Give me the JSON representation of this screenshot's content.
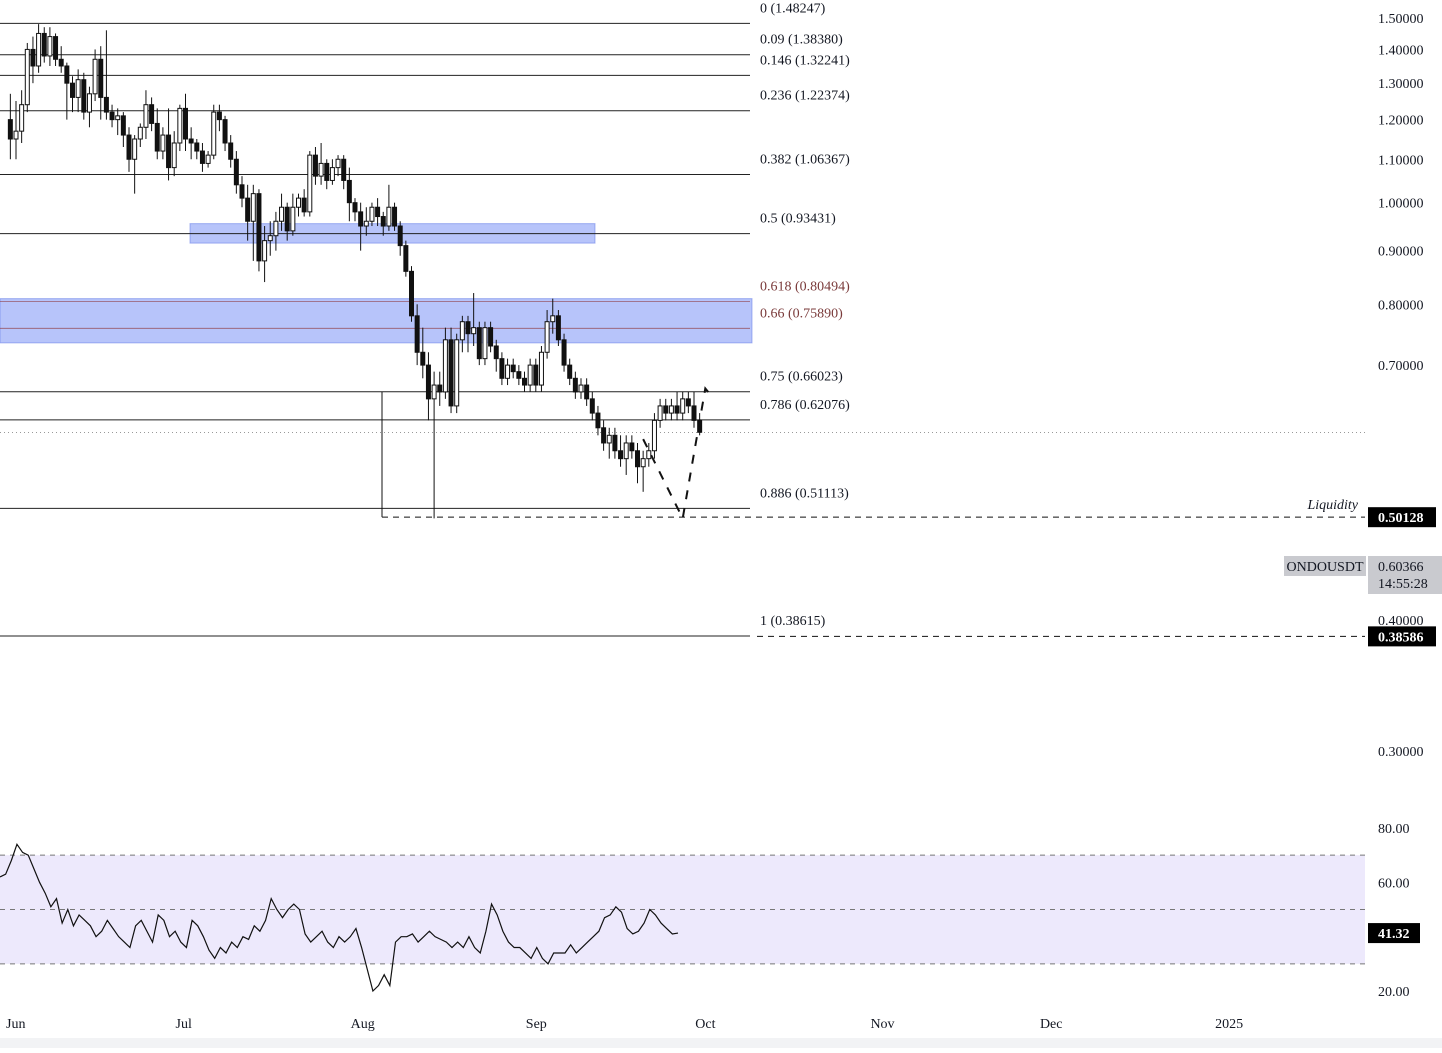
{
  "chart_data": {
    "type": "candlestick",
    "symbol": "ONDOUSDT",
    "current_price": "0.60366",
    "countdown": "14:55:28",
    "y_axis": {
      "scale": "log",
      "ticks": [
        "1.50000",
        "1.40000",
        "1.30000",
        "1.20000",
        "1.10000",
        "1.00000",
        "0.90000",
        "0.80000",
        "0.70000",
        "0.30000"
      ],
      "partially_hidden_tick": "0.40000"
    },
    "x_axis": {
      "ticks": [
        "Jun",
        "Jul",
        "Aug",
        "Sep",
        "Oct",
        "Nov",
        "Dec",
        "2025"
      ]
    },
    "fib_levels": [
      {
        "label": "0 (1.48247)",
        "value": 1.48247
      },
      {
        "label": "0.09 (1.38380)",
        "value": 1.3838
      },
      {
        "label": "0.146 (1.32241)",
        "value": 1.32241
      },
      {
        "label": "0.236 (1.22374)",
        "value": 1.22374
      },
      {
        "label": "0.382 (1.06367)",
        "value": 1.06367
      },
      {
        "label": "0.5 (0.93431)",
        "value": 0.93431
      },
      {
        "label": "0.618 (0.80494)",
        "value": 0.80494,
        "highlight": true
      },
      {
        "label": "0.66 (0.75890)",
        "value": 0.7589,
        "highlight": true
      },
      {
        "label": "0.75 (0.66023)",
        "value": 0.66023
      },
      {
        "label": "0.786 (0.62076)",
        "value": 0.62076
      },
      {
        "label": "0.886 (0.51113)",
        "value": 0.51113
      },
      {
        "label": "1 (0.38615)",
        "value": 0.38615
      }
    ],
    "zones": [
      {
        "name": "upper-zone",
        "from": 0.915,
        "to": 0.955
      },
      {
        "name": "golden-pocket",
        "from": 0.735,
        "to": 0.81
      }
    ],
    "horizontal_markers": [
      {
        "name": "liquidity",
        "label": "0.50128",
        "value": 0.50128,
        "annotation": "Liquidity"
      },
      {
        "name": "fib-1",
        "label": "0.38586",
        "value": 0.38586
      }
    ],
    "projection": [
      {
        "date": "2024-09-20",
        "price": 0.595
      },
      {
        "date": "2024-09-27",
        "price": 0.5
      },
      {
        "date": "2024-10-01",
        "price": 0.665
      },
      {
        "date": "2024-10-02",
        "price": 0.655
      }
    ],
    "candles": [
      {
        "d": "2024-05-31",
        "o": 1.2,
        "h": 1.27,
        "l": 1.1,
        "c": 1.15
      },
      {
        "d": "2024-06-01",
        "o": 1.15,
        "h": 1.25,
        "l": 1.1,
        "c": 1.17
      },
      {
        "d": "2024-06-02",
        "o": 1.17,
        "h": 1.28,
        "l": 1.14,
        "c": 1.24
      },
      {
        "d": "2024-06-03",
        "o": 1.24,
        "h": 1.42,
        "l": 1.22,
        "c": 1.4
      },
      {
        "d": "2024-06-04",
        "o": 1.4,
        "h": 1.44,
        "l": 1.3,
        "c": 1.35
      },
      {
        "d": "2024-06-05",
        "o": 1.35,
        "h": 1.48,
        "l": 1.33,
        "c": 1.45
      },
      {
        "d": "2024-06-06",
        "o": 1.45,
        "h": 1.47,
        "l": 1.36,
        "c": 1.38
      },
      {
        "d": "2024-06-07",
        "o": 1.38,
        "h": 1.47,
        "l": 1.35,
        "c": 1.44
      },
      {
        "d": "2024-06-08",
        "o": 1.44,
        "h": 1.45,
        "l": 1.35,
        "c": 1.37
      },
      {
        "d": "2024-06-09",
        "o": 1.37,
        "h": 1.41,
        "l": 1.33,
        "c": 1.35
      },
      {
        "d": "2024-06-10",
        "o": 1.35,
        "h": 1.36,
        "l": 1.2,
        "c": 1.3
      },
      {
        "d": "2024-06-11",
        "o": 1.3,
        "h": 1.32,
        "l": 1.22,
        "c": 1.26
      },
      {
        "d": "2024-06-12",
        "o": 1.26,
        "h": 1.34,
        "l": 1.22,
        "c": 1.31
      },
      {
        "d": "2024-06-13",
        "o": 1.31,
        "h": 1.33,
        "l": 1.2,
        "c": 1.22
      },
      {
        "d": "2024-06-14",
        "o": 1.22,
        "h": 1.29,
        "l": 1.18,
        "c": 1.27
      },
      {
        "d": "2024-06-15",
        "o": 1.27,
        "h": 1.4,
        "l": 1.25,
        "c": 1.37
      },
      {
        "d": "2024-06-16",
        "o": 1.37,
        "h": 1.41,
        "l": 1.2,
        "c": 1.26
      },
      {
        "d": "2024-06-17",
        "o": 1.26,
        "h": 1.46,
        "l": 1.2,
        "c": 1.22
      },
      {
        "d": "2024-06-18",
        "o": 1.22,
        "h": 1.24,
        "l": 1.18,
        "c": 1.2
      },
      {
        "d": "2024-06-19",
        "o": 1.2,
        "h": 1.23,
        "l": 1.16,
        "c": 1.21
      },
      {
        "d": "2024-06-20",
        "o": 1.21,
        "h": 1.22,
        "l": 1.13,
        "c": 1.16
      },
      {
        "d": "2024-06-21",
        "o": 1.16,
        "h": 1.18,
        "l": 1.07,
        "c": 1.1
      },
      {
        "d": "2024-06-22",
        "o": 1.1,
        "h": 1.16,
        "l": 1.02,
        "c": 1.15
      },
      {
        "d": "2024-06-23",
        "o": 1.15,
        "h": 1.19,
        "l": 1.13,
        "c": 1.18
      },
      {
        "d": "2024-06-24",
        "o": 1.18,
        "h": 1.28,
        "l": 1.15,
        "c": 1.24
      },
      {
        "d": "2024-06-25",
        "o": 1.24,
        "h": 1.26,
        "l": 1.17,
        "c": 1.19
      },
      {
        "d": "2024-06-26",
        "o": 1.19,
        "h": 1.23,
        "l": 1.1,
        "c": 1.12
      },
      {
        "d": "2024-06-27",
        "o": 1.12,
        "h": 1.18,
        "l": 1.1,
        "c": 1.16
      },
      {
        "d": "2024-06-28",
        "o": 1.16,
        "h": 1.23,
        "l": 1.05,
        "c": 1.08
      },
      {
        "d": "2024-06-29",
        "o": 1.08,
        "h": 1.17,
        "l": 1.06,
        "c": 1.14
      },
      {
        "d": "2024-06-30",
        "o": 1.14,
        "h": 1.24,
        "l": 1.12,
        "c": 1.23
      },
      {
        "d": "2024-07-01",
        "o": 1.23,
        "h": 1.27,
        "l": 1.12,
        "c": 1.15
      },
      {
        "d": "2024-07-02",
        "o": 1.15,
        "h": 1.18,
        "l": 1.1,
        "c": 1.14
      },
      {
        "d": "2024-07-03",
        "o": 1.14,
        "h": 1.15,
        "l": 1.1,
        "c": 1.12
      },
      {
        "d": "2024-07-04",
        "o": 1.12,
        "h": 1.14,
        "l": 1.07,
        "c": 1.09
      },
      {
        "d": "2024-07-05",
        "o": 1.09,
        "h": 1.12,
        "l": 1.08,
        "c": 1.11
      },
      {
        "d": "2024-07-06",
        "o": 1.11,
        "h": 1.24,
        "l": 1.1,
        "c": 1.22
      },
      {
        "d": "2024-07-07",
        "o": 1.22,
        "h": 1.24,
        "l": 1.17,
        "c": 1.2
      },
      {
        "d": "2024-07-08",
        "o": 1.2,
        "h": 1.21,
        "l": 1.12,
        "c": 1.14
      },
      {
        "d": "2024-07-09",
        "o": 1.14,
        "h": 1.16,
        "l": 1.08,
        "c": 1.1
      },
      {
        "d": "2024-07-10",
        "o": 1.1,
        "h": 1.12,
        "l": 1.02,
        "c": 1.04
      },
      {
        "d": "2024-07-11",
        "o": 1.04,
        "h": 1.06,
        "l": 0.99,
        "c": 1.01
      },
      {
        "d": "2024-07-12",
        "o": 1.01,
        "h": 1.04,
        "l": 0.92,
        "c": 0.96
      },
      {
        "d": "2024-07-13",
        "o": 0.96,
        "h": 1.04,
        "l": 0.88,
        "c": 1.02
      },
      {
        "d": "2024-07-14",
        "o": 1.02,
        "h": 1.03,
        "l": 0.86,
        "c": 0.88
      },
      {
        "d": "2024-07-15",
        "o": 0.88,
        "h": 0.95,
        "l": 0.84,
        "c": 0.92
      },
      {
        "d": "2024-07-16",
        "o": 0.92,
        "h": 0.96,
        "l": 0.89,
        "c": 0.93
      },
      {
        "d": "2024-07-17",
        "o": 0.93,
        "h": 0.98,
        "l": 0.9,
        "c": 0.96
      },
      {
        "d": "2024-07-18",
        "o": 0.96,
        "h": 1.02,
        "l": 0.94,
        "c": 0.99
      },
      {
        "d": "2024-07-19",
        "o": 0.99,
        "h": 1.0,
        "l": 0.92,
        "c": 0.94
      },
      {
        "d": "2024-07-20",
        "o": 0.94,
        "h": 1.02,
        "l": 0.93,
        "c": 0.99
      },
      {
        "d": "2024-07-21",
        "o": 0.99,
        "h": 1.02,
        "l": 0.97,
        "c": 1.01
      },
      {
        "d": "2024-07-22",
        "o": 1.01,
        "h": 1.03,
        "l": 0.97,
        "c": 0.98
      },
      {
        "d": "2024-07-23",
        "o": 0.98,
        "h": 1.12,
        "l": 0.97,
        "c": 1.11
      },
      {
        "d": "2024-07-24",
        "o": 1.11,
        "h": 1.13,
        "l": 1.04,
        "c": 1.06
      },
      {
        "d": "2024-07-25",
        "o": 1.06,
        "h": 1.14,
        "l": 1.04,
        "c": 1.09
      },
      {
        "d": "2024-07-26",
        "o": 1.09,
        "h": 1.1,
        "l": 1.03,
        "c": 1.05
      },
      {
        "d": "2024-07-27",
        "o": 1.05,
        "h": 1.1,
        "l": 1.04,
        "c": 1.08
      },
      {
        "d": "2024-07-28",
        "o": 1.08,
        "h": 1.11,
        "l": 1.06,
        "c": 1.1
      },
      {
        "d": "2024-07-29",
        "o": 1.1,
        "h": 1.11,
        "l": 1.03,
        "c": 1.05
      },
      {
        "d": "2024-07-30",
        "o": 1.05,
        "h": 1.08,
        "l": 0.96,
        "c": 1.0
      },
      {
        "d": "2024-07-31",
        "o": 1.0,
        "h": 1.01,
        "l": 0.96,
        "c": 0.98
      },
      {
        "d": "2024-08-01",
        "o": 0.98,
        "h": 1.0,
        "l": 0.9,
        "c": 0.95
      },
      {
        "d": "2024-08-02",
        "o": 0.95,
        "h": 0.99,
        "l": 0.93,
        "c": 0.96
      },
      {
        "d": "2024-08-03",
        "o": 0.96,
        "h": 1.0,
        "l": 0.95,
        "c": 0.99
      },
      {
        "d": "2024-08-04",
        "o": 0.99,
        "h": 1.01,
        "l": 0.95,
        "c": 0.97
      },
      {
        "d": "2024-08-05",
        "o": 0.97,
        "h": 0.98,
        "l": 0.93,
        "c": 0.95
      },
      {
        "d": "2024-08-06",
        "o": 0.95,
        "h": 1.04,
        "l": 0.94,
        "c": 0.99
      },
      {
        "d": "2024-08-07",
        "o": 0.99,
        "h": 1.0,
        "l": 0.94,
        "c": 0.95
      },
      {
        "d": "2024-08-08",
        "o": 0.95,
        "h": 0.96,
        "l": 0.89,
        "c": 0.91
      },
      {
        "d": "2024-08-09",
        "o": 0.91,
        "h": 0.92,
        "l": 0.85,
        "c": 0.86
      },
      {
        "d": "2024-08-10",
        "o": 0.86,
        "h": 0.87,
        "l": 0.77,
        "c": 0.78
      },
      {
        "d": "2024-08-11",
        "o": 0.78,
        "h": 0.8,
        "l": 0.7,
        "c": 0.72
      },
      {
        "d": "2024-08-12",
        "o": 0.72,
        "h": 0.76,
        "l": 0.68,
        "c": 0.7
      },
      {
        "d": "2024-08-13",
        "o": 0.7,
        "h": 0.72,
        "l": 0.62,
        "c": 0.65
      },
      {
        "d": "2024-08-14",
        "o": 0.65,
        "h": 0.69,
        "l": 0.5,
        "c": 0.67
      },
      {
        "d": "2024-08-15",
        "o": 0.67,
        "h": 0.69,
        "l": 0.64,
        "c": 0.66
      },
      {
        "d": "2024-08-16",
        "o": 0.66,
        "h": 0.76,
        "l": 0.65,
        "c": 0.74
      },
      {
        "d": "2024-08-17",
        "o": 0.74,
        "h": 0.76,
        "l": 0.63,
        "c": 0.64
      },
      {
        "d": "2024-08-18",
        "o": 0.64,
        "h": 0.75,
        "l": 0.63,
        "c": 0.74
      },
      {
        "d": "2024-08-19",
        "o": 0.74,
        "h": 0.78,
        "l": 0.72,
        "c": 0.77
      },
      {
        "d": "2024-08-20",
        "o": 0.77,
        "h": 0.78,
        "l": 0.72,
        "c": 0.75
      },
      {
        "d": "2024-08-21",
        "o": 0.75,
        "h": 0.82,
        "l": 0.73,
        "c": 0.76
      },
      {
        "d": "2024-08-22",
        "o": 0.76,
        "h": 0.77,
        "l": 0.7,
        "c": 0.71
      },
      {
        "d": "2024-08-23",
        "o": 0.71,
        "h": 0.77,
        "l": 0.7,
        "c": 0.76
      },
      {
        "d": "2024-08-24",
        "o": 0.76,
        "h": 0.77,
        "l": 0.72,
        "c": 0.73
      },
      {
        "d": "2024-08-25",
        "o": 0.73,
        "h": 0.74,
        "l": 0.69,
        "c": 0.71
      },
      {
        "d": "2024-08-26",
        "o": 0.71,
        "h": 0.72,
        "l": 0.67,
        "c": 0.68
      },
      {
        "d": "2024-08-27",
        "o": 0.68,
        "h": 0.71,
        "l": 0.67,
        "c": 0.7
      },
      {
        "d": "2024-08-28",
        "o": 0.7,
        "h": 0.71,
        "l": 0.68,
        "c": 0.69
      },
      {
        "d": "2024-08-29",
        "o": 0.69,
        "h": 0.7,
        "l": 0.67,
        "c": 0.68
      },
      {
        "d": "2024-08-30",
        "o": 0.68,
        "h": 0.69,
        "l": 0.66,
        "c": 0.67
      },
      {
        "d": "2024-08-31",
        "o": 0.67,
        "h": 0.71,
        "l": 0.66,
        "c": 0.7
      },
      {
        "d": "2024-09-01",
        "o": 0.7,
        "h": 0.71,
        "l": 0.66,
        "c": 0.67
      },
      {
        "d": "2024-09-02",
        "o": 0.67,
        "h": 0.73,
        "l": 0.66,
        "c": 0.72
      },
      {
        "d": "2024-09-03",
        "o": 0.72,
        "h": 0.79,
        "l": 0.71,
        "c": 0.77
      },
      {
        "d": "2024-09-04",
        "o": 0.77,
        "h": 0.81,
        "l": 0.75,
        "c": 0.78
      },
      {
        "d": "2024-09-05",
        "o": 0.78,
        "h": 0.79,
        "l": 0.73,
        "c": 0.74
      },
      {
        "d": "2024-09-06",
        "o": 0.74,
        "h": 0.75,
        "l": 0.69,
        "c": 0.7
      },
      {
        "d": "2024-09-07",
        "o": 0.7,
        "h": 0.71,
        "l": 0.67,
        "c": 0.68
      },
      {
        "d": "2024-09-08",
        "o": 0.68,
        "h": 0.69,
        "l": 0.65,
        "c": 0.66
      },
      {
        "d": "2024-09-09",
        "o": 0.66,
        "h": 0.68,
        "l": 0.65,
        "c": 0.67
      },
      {
        "d": "2024-09-10",
        "o": 0.67,
        "h": 0.68,
        "l": 0.64,
        "c": 0.65
      },
      {
        "d": "2024-09-11",
        "o": 0.65,
        "h": 0.66,
        "l": 0.62,
        "c": 0.63
      },
      {
        "d": "2024-09-12",
        "o": 0.63,
        "h": 0.64,
        "l": 0.6,
        "c": 0.61
      },
      {
        "d": "2024-09-13",
        "o": 0.61,
        "h": 0.62,
        "l": 0.58,
        "c": 0.59
      },
      {
        "d": "2024-09-14",
        "o": 0.59,
        "h": 0.61,
        "l": 0.57,
        "c": 0.6
      },
      {
        "d": "2024-09-15",
        "o": 0.6,
        "h": 0.61,
        "l": 0.57,
        "c": 0.58
      },
      {
        "d": "2024-09-16",
        "o": 0.58,
        "h": 0.6,
        "l": 0.56,
        "c": 0.57
      },
      {
        "d": "2024-09-17",
        "o": 0.57,
        "h": 0.6,
        "l": 0.55,
        "c": 0.59
      },
      {
        "d": "2024-09-18",
        "o": 0.59,
        "h": 0.6,
        "l": 0.57,
        "c": 0.58
      },
      {
        "d": "2024-09-19",
        "o": 0.58,
        "h": 0.59,
        "l": 0.54,
        "c": 0.56
      },
      {
        "d": "2024-09-20",
        "o": 0.56,
        "h": 0.58,
        "l": 0.53,
        "c": 0.57
      },
      {
        "d": "2024-09-21",
        "o": 0.57,
        "h": 0.59,
        "l": 0.56,
        "c": 0.58
      },
      {
        "d": "2024-09-22",
        "o": 0.58,
        "h": 0.63,
        "l": 0.57,
        "c": 0.62
      },
      {
        "d": "2024-09-23",
        "o": 0.62,
        "h": 0.65,
        "l": 0.61,
        "c": 0.64
      },
      {
        "d": "2024-09-24",
        "o": 0.64,
        "h": 0.65,
        "l": 0.62,
        "c": 0.63
      },
      {
        "d": "2024-09-25",
        "o": 0.63,
        "h": 0.65,
        "l": 0.62,
        "c": 0.64
      },
      {
        "d": "2024-09-26",
        "o": 0.64,
        "h": 0.66,
        "l": 0.62,
        "c": 0.63
      },
      {
        "d": "2024-09-27",
        "o": 0.63,
        "h": 0.66,
        "l": 0.62,
        "c": 0.65
      },
      {
        "d": "2024-09-28",
        "o": 0.65,
        "h": 0.66,
        "l": 0.63,
        "c": 0.64
      },
      {
        "d": "2024-09-29",
        "o": 0.64,
        "h": 0.66,
        "l": 0.61,
        "c": 0.62
      },
      {
        "d": "2024-09-30",
        "o": 0.62,
        "h": 0.63,
        "l": 0.6,
        "c": 0.604
      }
    ],
    "rsi": {
      "ticks": [
        "80.00",
        "60.00",
        "20.00"
      ],
      "current": "41.32",
      "upper": 70,
      "middle": 50,
      "lower": 30,
      "values": [
        62,
        63,
        68,
        74,
        71,
        70,
        65,
        60,
        56,
        51,
        54,
        45,
        50,
        44,
        48,
        46,
        44,
        40,
        42,
        46,
        43,
        40,
        38,
        36,
        44,
        46,
        42,
        38,
        48,
        46,
        40,
        42,
        38,
        36,
        46,
        44,
        40,
        35,
        32,
        36,
        34,
        38,
        36,
        40,
        39,
        44,
        42,
        46,
        54,
        50,
        47,
        50,
        52,
        50,
        41,
        38,
        40,
        42,
        38,
        36,
        40,
        38,
        40,
        43,
        36,
        28,
        20,
        22,
        26,
        22,
        38,
        40,
        40,
        41,
        38,
        40,
        42,
        40,
        39,
        38,
        36,
        38,
        36,
        40,
        36,
        34,
        42,
        52,
        48,
        42,
        38,
        36,
        36,
        34,
        32,
        36,
        32,
        30,
        34,
        34,
        34,
        37,
        34,
        36,
        38,
        40,
        42,
        47,
        48,
        51,
        49,
        43,
        41,
        42,
        45,
        50,
        48,
        45,
        43,
        41,
        41.32
      ]
    }
  }
}
